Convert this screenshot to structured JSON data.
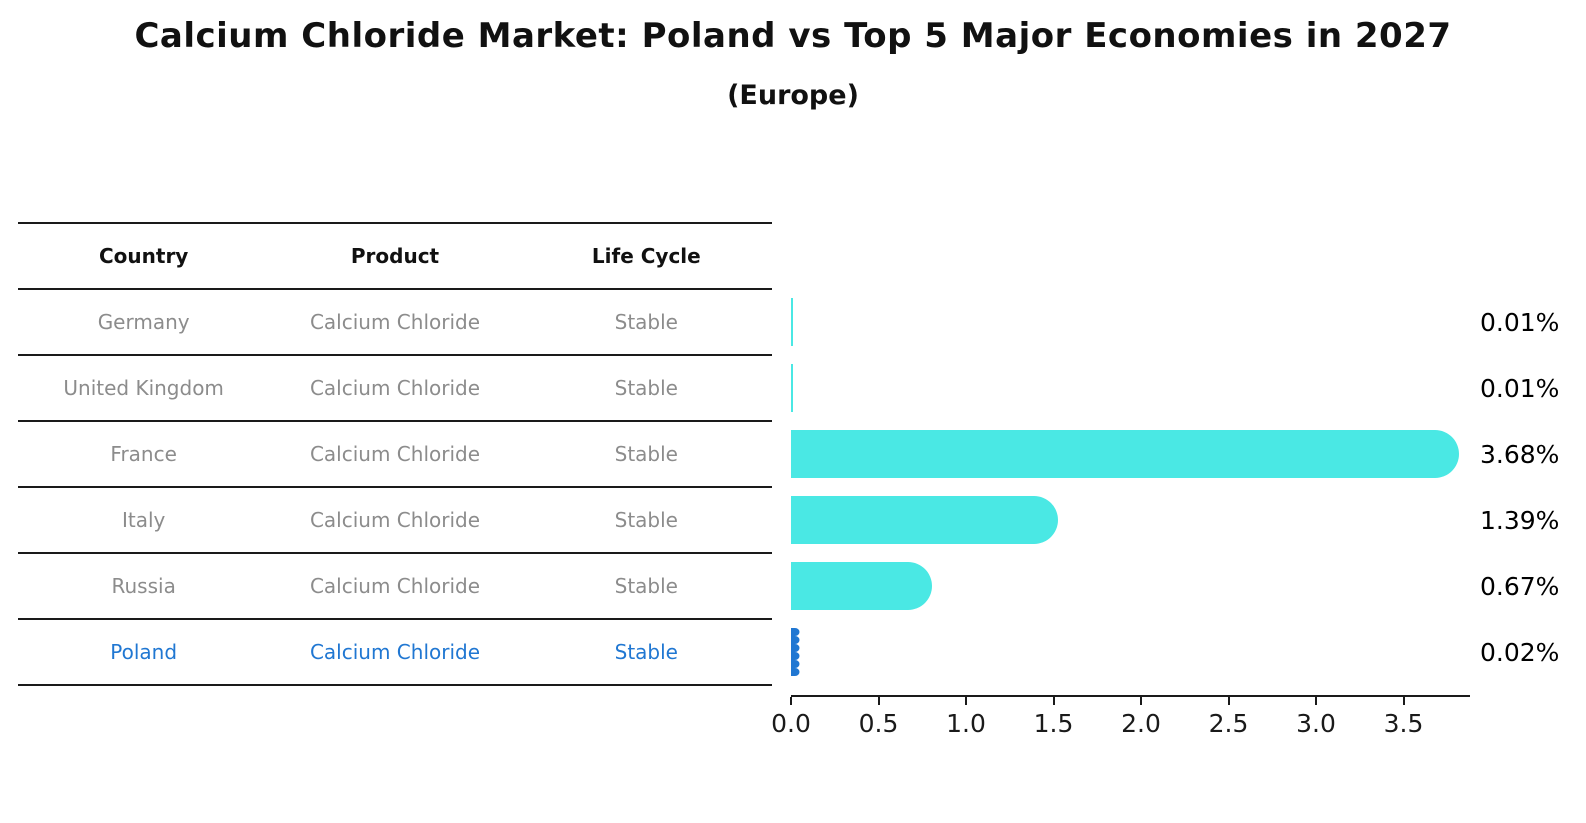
{
  "header": {
    "title": "Calcium Chloride Market: Poland vs Top 5 Major Economies in 2027",
    "subtitle": "(Europe)"
  },
  "table": {
    "columns": [
      "Country",
      "Product",
      "Life Cycle"
    ],
    "rows": [
      {
        "country": "Germany",
        "product": "Calcium Chloride",
        "life_cycle": "Stable",
        "highlighted": false
      },
      {
        "country": "United Kingdom",
        "product": "Calcium Chloride",
        "life_cycle": "Stable",
        "highlighted": false
      },
      {
        "country": "France",
        "product": "Calcium Chloride",
        "life_cycle": "Stable",
        "highlighted": false
      },
      {
        "country": "Italy",
        "product": "Calcium Chloride",
        "life_cycle": "Stable",
        "highlighted": false
      },
      {
        "country": "Russia",
        "product": "Calcium Chloride",
        "life_cycle": "Stable",
        "highlighted": false
      },
      {
        "country": "Poland",
        "product": "Calcium Chloride",
        "life_cycle": "Stable",
        "highlighted": true
      }
    ]
  },
  "chart_data": {
    "type": "bar",
    "orientation": "horizontal",
    "title": "Calcium Chloride Market: Poland vs Top 5 Major Economies in 2027",
    "subtitle": "(Europe)",
    "categories": [
      "Germany",
      "United Kingdom",
      "France",
      "Italy",
      "Russia",
      "Poland"
    ],
    "values": [
      0.01,
      0.01,
      3.68,
      1.39,
      0.67,
      0.02
    ],
    "value_labels": [
      "0.01%",
      "0.01%",
      "3.68%",
      "1.39%",
      "0.67%",
      "0.02%"
    ],
    "unit": "%",
    "xlim": [
      0,
      3.88
    ],
    "x_ticks": [
      0.0,
      0.5,
      1.0,
      1.5,
      2.0,
      2.5,
      3.0,
      3.5
    ],
    "x_tick_labels": [
      "0.0",
      "0.5",
      "1.0",
      "1.5",
      "2.0",
      "2.5",
      "3.0",
      "3.5"
    ],
    "highlight_category": "Poland",
    "grid": false,
    "legend": false
  },
  "colors": {
    "bar_cyan": "#4ae8e4",
    "highlight_blue": "#2077d2",
    "text_dark": "#111111",
    "text_gray": "#8c8c8c",
    "line_dark": "#1a1a1a"
  }
}
